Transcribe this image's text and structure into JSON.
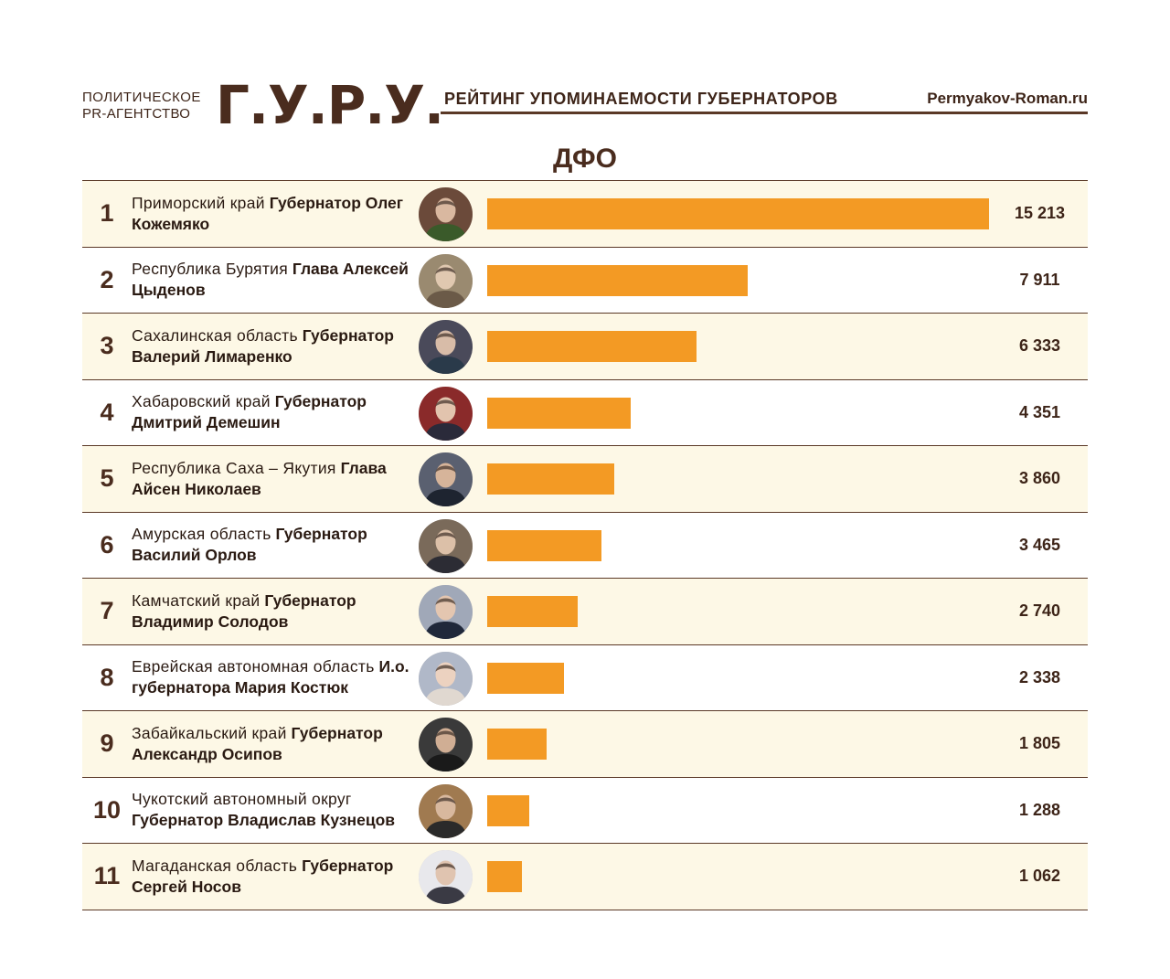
{
  "header": {
    "agency_line1": "ПОЛИТИЧЕСКОЕ",
    "agency_line2": "PR-АГЕНТСТВО",
    "logo": "Г.У.Р.У.",
    "rating_title": "РЕЙТИНГ УПОМИНАЕМОСТИ ГУБЕРНАТОРОВ",
    "site": "Permyakov-Roman.ru"
  },
  "colors": {
    "bar": "#f39a24",
    "text": "#3d2418",
    "alt_row": "#fdf8e6"
  },
  "chart_data": {
    "type": "bar",
    "title": "ДФО",
    "orientation": "horizontal",
    "xlim": [
      0,
      15213
    ],
    "categories": [
      "Приморский край Губернатор Олег Кожемяко",
      "Республика Бурятия Глава Алексей Цыденов",
      "Сахалинская область Губернатор Валерий Лимаренко",
      "Хабаровский край Губернатор Дмитрий Демешин",
      "Республика Саха – Якутия Глава Айсен Николаев",
      "Амурская область Губернатор Василий Орлов",
      "Камчатский край Губернатор Владимир Солодов",
      "Еврейская автономная область И.о. губернатора Мария Костюк",
      "Забайкальский край Губернатор Александр Осипов",
      "Чукотский автономный округ Губернатор Владислав Кузнецов",
      "Магаданская область Губернатор Сергей Носов"
    ],
    "values": [
      15213,
      7911,
      6333,
      4351,
      3860,
      3465,
      2740,
      2338,
      1805,
      1288,
      1062
    ],
    "rows": [
      {
        "rank": "1",
        "region": "Приморский край",
        "person": "Губернатор Олег Кожемяко",
        "value": 15213,
        "value_label": "15 213"
      },
      {
        "rank": "2",
        "region": "Республика Бурятия",
        "person": "Глава Алексей Цыденов",
        "value": 7911,
        "value_label": "7 911"
      },
      {
        "rank": "3",
        "region": "Сахалинская область",
        "person": "Губернатор Валерий Лимаренко",
        "value": 6333,
        "value_label": "6 333"
      },
      {
        "rank": "4",
        "region": "Хабаровский край",
        "person": "Губернатор Дмитрий Демешин",
        "value": 4351,
        "value_label": "4 351"
      },
      {
        "rank": "5",
        "region": "Республика Саха – Якутия",
        "person": "Глава Айсен Николаев",
        "value": 3860,
        "value_label": "3 860"
      },
      {
        "rank": "6",
        "region": "Амурская область",
        "person": "Губернатор Василий Орлов",
        "value": 3465,
        "value_label": "3 465"
      },
      {
        "rank": "7",
        "region": "Камчатский край",
        "person": "Губернатор Владимир Солодов",
        "value": 2740,
        "value_label": "2 740"
      },
      {
        "rank": "8",
        "region": "Еврейская автономная область",
        "person": "И.о. губернатора Мария Костюк",
        "value": 2338,
        "value_label": "2 338"
      },
      {
        "rank": "9",
        "region": "Забайкальский край",
        "person": "Губернатор Александр Осипов",
        "value": 1805,
        "value_label": "1 805"
      },
      {
        "rank": "10",
        "region": "Чукотский автономный округ",
        "person": "Губернатор Владислав Кузнецов",
        "value": 1288,
        "value_label": "1 288"
      },
      {
        "rank": "11",
        "region": "Магаданская область",
        "person": "Губернатор Сергей Носов",
        "value": 1062,
        "value_label": "1 062"
      }
    ]
  }
}
